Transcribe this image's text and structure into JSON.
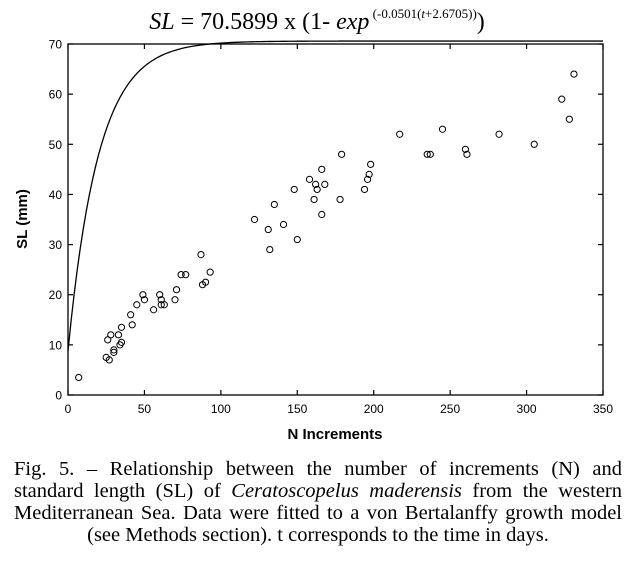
{
  "equation": {
    "lhs": "SL",
    "eq": " = ",
    "coef": "70.5899",
    "mid": " x (1- ",
    "fn": "exp",
    "exponent": " (-0.0501(",
    "exponent_var": "t",
    "exponent_tail": "+2.6705))",
    "close": ")"
  },
  "caption": {
    "part1": "Fig. 5. – Relationship between the number of increments (N) and standard length (SL) of ",
    "species": "Ceratoscopelus maderensis",
    "part2": " from the western Mediterranean Sea. Data were fitted to a von Bertalanffy growth model (see Methods section). t corresponds to the time in days."
  },
  "chart_data": {
    "type": "scatter",
    "title": "",
    "xlabel": "N Increments",
    "ylabel": "SL (mm)",
    "xlim": [
      0,
      350
    ],
    "ylim": [
      0,
      70
    ],
    "xticks": [
      0,
      50,
      100,
      150,
      200,
      250,
      300,
      350
    ],
    "yticks": [
      0,
      10,
      20,
      30,
      40,
      50,
      60,
      70
    ],
    "grid": false,
    "legend": "none",
    "series": [
      {
        "type": "scatter",
        "marker": "open-circle",
        "x": [
          7,
          25,
          26,
          27,
          28,
          30,
          30,
          33,
          34,
          35,
          35,
          41,
          42,
          45,
          49,
          50,
          56,
          60,
          61,
          61,
          63,
          70,
          71,
          74,
          77,
          87,
          88,
          90,
          93,
          122,
          131,
          132,
          135,
          141,
          148,
          150,
          158,
          161,
          162,
          163,
          166,
          166,
          168,
          178,
          179,
          194,
          196,
          197,
          198,
          217,
          235,
          237,
          245,
          260,
          261,
          282,
          305,
          323,
          328,
          331
        ],
        "y": [
          3.5,
          7.5,
          11,
          7,
          12,
          9,
          8.5,
          12,
          10,
          10.5,
          13.5,
          16,
          14,
          18,
          20,
          19,
          17,
          20,
          18,
          19,
          18,
          19,
          21,
          24,
          24,
          28,
          22,
          22.5,
          24.5,
          35,
          33,
          29,
          38,
          34,
          41,
          31,
          43,
          39,
          42,
          41,
          45,
          36,
          42,
          39,
          48,
          41,
          43,
          44,
          46,
          52,
          48,
          48,
          53,
          49,
          48,
          52,
          50,
          59,
          55,
          64
        ]
      },
      {
        "type": "line",
        "model": "von Bertalanffy",
        "params": {
          "Linf": 70.5899,
          "k": 0.0501,
          "t0": -2.6705
        },
        "x_range": [
          0,
          350
        ]
      }
    ]
  }
}
